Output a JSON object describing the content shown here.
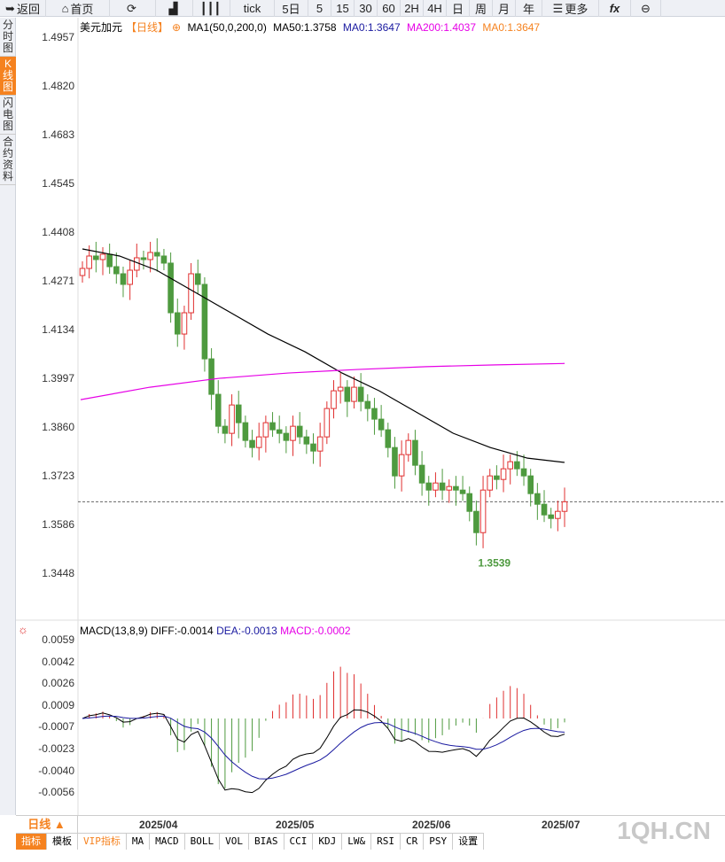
{
  "toolbar": [
    {
      "icon": "back-icon",
      "label": "返回",
      "w": 52
    },
    {
      "icon": "home-icon",
      "label": "首页",
      "w": 72
    },
    {
      "icon": "refresh-icon",
      "label": "",
      "w": 52
    },
    {
      "icon": "bar-chart-icon",
      "label": "",
      "w": 42
    },
    {
      "icon": "candlestick-icon",
      "label": "",
      "w": 42
    },
    {
      "label": "tick",
      "w": 50
    },
    {
      "label": "5日",
      "w": 38
    },
    {
      "label": "5",
      "w": 26
    },
    {
      "label": "15",
      "w": 26
    },
    {
      "label": "30",
      "w": 26
    },
    {
      "label": "60",
      "w": 26
    },
    {
      "label": "2H",
      "w": 26
    },
    {
      "label": "4H",
      "w": 26
    },
    {
      "label": "日",
      "w": 26
    },
    {
      "label": "周",
      "w": 26
    },
    {
      "label": "月",
      "w": 26
    },
    {
      "label": "年",
      "w": 30
    },
    {
      "icon": "menu-icon",
      "label": "更多",
      "w": 64
    },
    {
      "icon": "fx-icon",
      "label": "fx",
      "w": 36
    },
    {
      "icon": "zoom-out-icon",
      "label": "⊖",
      "w": 34
    }
  ],
  "sidebar": [
    {
      "label": "分时图"
    },
    {
      "label": "K线图",
      "active": true
    },
    {
      "label": "闪电图"
    },
    {
      "label": "合约资料"
    }
  ],
  "legend": {
    "symbol": "美元加元",
    "period": "【日线】",
    "ma_name": "MA1(50,0,200,0)",
    "ma50": "MA50:1.3758",
    "ma0": "MA0:1.3647",
    "ma200": "MA200:1.4037",
    "ma0b": "MA0:1.3647"
  },
  "colors": {
    "up": "#e03030",
    "down": "#4e9a3f",
    "ma50": "#000000",
    "ma200": "#e600e6",
    "ma0": "#1a1aa0",
    "accent": "#f5821f"
  },
  "price_axis": [
    "1.4957",
    "1.4820",
    "1.4683",
    "1.4545",
    "1.4408",
    "1.4271",
    "1.4134",
    "1.3997",
    "1.3860",
    "1.3723",
    "1.3586",
    "1.3448"
  ],
  "low_label": "1.3539",
  "macd": {
    "header": "MACD(13,8,9)",
    "diff": "DIFF:-0.0014",
    "dea": "DEA:-0.0013",
    "macd": "MACD:-0.0002",
    "axis": [
      "0.0059",
      "0.0042",
      "0.0026",
      "0.0009",
      "-0.0007",
      "-0.0023",
      "-0.0040",
      "-0.0056"
    ]
  },
  "dates": {
    "period": "日线 ▲",
    "labels": [
      "2025/04",
      "2025/05",
      "2025/06",
      "2025/07"
    ]
  },
  "bottom_tabs": [
    "指标",
    "模板",
    "VIP指标",
    "MA",
    "MACD",
    "BOLL",
    "VOL",
    "BIAS",
    "CCI",
    "KDJ",
    "LW&",
    "RSI",
    "CR",
    "PSY",
    "设置"
  ],
  "watermark": "1QH.CN",
  "chart_data": {
    "type": "candlestick",
    "last_price": 1.3647,
    "closes": [
      1.4305,
      1.434,
      1.433,
      1.4345,
      1.431,
      1.429,
      1.426,
      1.43,
      1.4335,
      1.433,
      1.435,
      1.434,
      1.432,
      1.418,
      1.412,
      1.418,
      1.429,
      1.426,
      1.405,
      1.395,
      1.386,
      1.384,
      1.392,
      1.387,
      1.382,
      1.38,
      1.383,
      1.387,
      1.385,
      1.384,
      1.382,
      1.386,
      1.383,
      1.381,
      1.379,
      1.383,
      1.391,
      1.396,
      1.397,
      1.393,
      1.397,
      1.393,
      1.391,
      1.388,
      1.385,
      1.38,
      1.372,
      1.378,
      1.382,
      1.375,
      1.37,
      1.368,
      1.37,
      1.368,
      1.369,
      1.368,
      1.367,
      1.362,
      1.356,
      1.368,
      1.372,
      1.371,
      1.374,
      1.376,
      1.374,
      1.372,
      1.367,
      1.364,
      1.361,
      1.36,
      1.362,
      1.3647
    ],
    "ma50": [
      1.436,
      1.434,
      1.43,
      1.424,
      1.418,
      1.412,
      1.407,
      1.401,
      1.396,
      1.39,
      1.384,
      1.38,
      1.377,
      1.3758
    ],
    "ma200": [
      1.3935,
      1.397,
      1.3995,
      1.401,
      1.402,
      1.4028,
      1.4033,
      1.4037
    ],
    "macd_axis_range": [
      -0.007,
      0.0059
    ]
  }
}
